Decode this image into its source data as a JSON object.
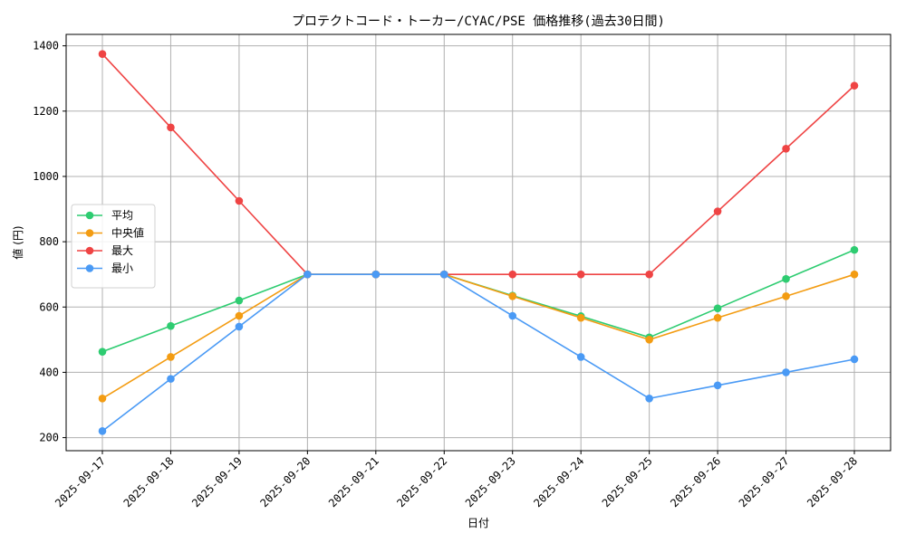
{
  "chart_data": {
    "type": "line",
    "title": "プロテクトコード・トーカー/CYAC/PSE 価格推移(過去30日間)",
    "xlabel": "日付",
    "ylabel": "値 (円)",
    "categories": [
      "2025-09-17",
      "2025-09-18",
      "2025-09-19",
      "2025-09-20",
      "2025-09-21",
      "2025-09-22",
      "2025-09-23",
      "2025-09-24",
      "2025-09-25",
      "2025-09-26",
      "2025-09-27",
      "2025-09-28"
    ],
    "ylim": [
      160,
      1435
    ],
    "yticks": [
      200,
      400,
      600,
      800,
      1000,
      1200,
      1400
    ],
    "grid": true,
    "legend_position": "center-left",
    "series": [
      {
        "name": "平均",
        "color": "#2ecc71",
        "values": [
          463,
          542,
          620,
          700,
          700,
          700,
          635,
          572,
          507,
          596,
          686,
          775
        ]
      },
      {
        "name": "中央値",
        "color": "#f39c12",
        "values": [
          320,
          447,
          573,
          700,
          700,
          700,
          633,
          567,
          500,
          567,
          633,
          700
        ]
      },
      {
        "name": "最大",
        "color": "#ef4444",
        "values": [
          1375,
          1150,
          925,
          700,
          700,
          700,
          700,
          700,
          700,
          893,
          1085,
          1278
        ]
      },
      {
        "name": "最小",
        "color": "#4a9af5",
        "values": [
          220,
          380,
          540,
          700,
          700,
          700,
          573,
          447,
          320,
          360,
          400,
          440
        ]
      }
    ]
  }
}
